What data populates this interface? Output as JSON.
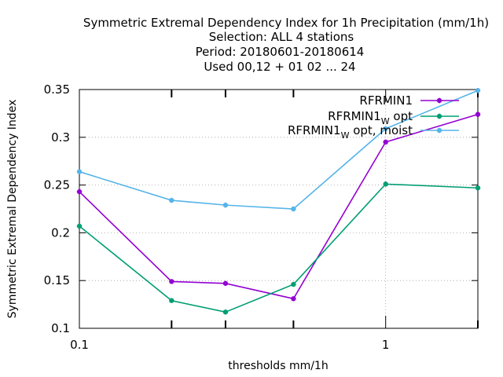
{
  "chart_data": {
    "type": "line",
    "title_lines": [
      "Symmetric Extremal Dependency Index  for 1h Precipitation (mm/1h)",
      "Selection: ALL      4 stations",
      "Period: 20180601-20180614",
      "Used  00,12  + 01 02 ... 24"
    ],
    "xlabel": "thresholds mm/1h",
    "ylabel": "Symmetric Extremal Dependency Index",
    "x_scale": "log",
    "xlim": [
      0.1,
      2
    ],
    "ylim": [
      0.1,
      0.35
    ],
    "x_ticks": [
      {
        "value": 0.1,
        "label": "0.1"
      },
      {
        "value": 1,
        "label": "1"
      }
    ],
    "x_minor_ticks": [
      0.2,
      0.3,
      0.5,
      2
    ],
    "y_ticks": [
      {
        "value": 0.1,
        "label": "0.1"
      },
      {
        "value": 0.15,
        "label": "0.15"
      },
      {
        "value": 0.2,
        "label": "0.2"
      },
      {
        "value": 0.25,
        "label": "0.25"
      },
      {
        "value": 0.3,
        "label": "0.3"
      },
      {
        "value": 0.35,
        "label": "0.35"
      }
    ],
    "grid": true,
    "legend_position": "top-right",
    "x": [
      0.1,
      0.2,
      0.3,
      0.5,
      1,
      2
    ],
    "series": [
      {
        "name": "RFRMIN1",
        "name_sub": "",
        "name_suffix": "",
        "color": "#9400d3",
        "values": [
          0.243,
          0.149,
          0.147,
          0.131,
          0.295,
          0.324
        ]
      },
      {
        "name": "RFRMIN1",
        "name_sub": "W",
        "name_suffix": "opt",
        "color": "#009e73",
        "values": [
          0.207,
          0.129,
          0.117,
          0.146,
          0.251,
          0.247
        ]
      },
      {
        "name": "RFRMIN1",
        "name_sub": "W",
        "name_suffix": "opt, moist",
        "color": "#56b4e9",
        "values": [
          0.264,
          0.234,
          0.229,
          0.225,
          0.309,
          0.349
        ]
      }
    ]
  }
}
